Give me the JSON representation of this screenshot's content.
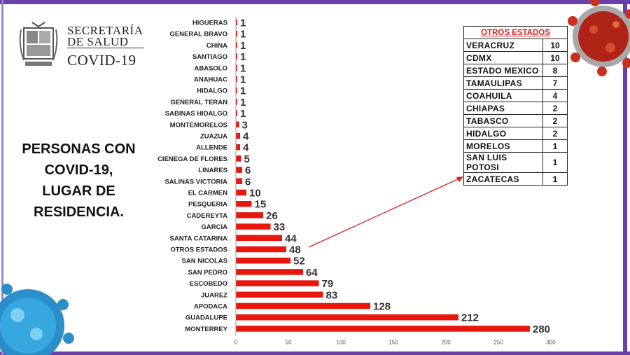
{
  "header": {
    "org_line1": "SECRETARÍA",
    "org_line2": "DE SALUD",
    "program": "COVID-19"
  },
  "heading": {
    "line1": "PERSONAS CON",
    "line2": "COVID-19,",
    "line3": "LUGAR DE",
    "line4": "RESIDENCIA."
  },
  "colors": {
    "bar": "#e8160c",
    "frame": "#6a3fa8",
    "table_title": "#e02020"
  },
  "chart_data": {
    "type": "bar",
    "orientation": "horizontal",
    "categories": [
      "HIGUERAS",
      "GENERAL BRAVO",
      "CHINA",
      "SANTIAGO",
      "ABASOLO",
      "ANAHUAC",
      "HIDALGO",
      "GENERAL TERAN",
      "SABINAS HIDALGO",
      "MONTEMORELOS",
      "ZUAZUA",
      "ALLENDE",
      "CIENEGA DE FLORES",
      "LINARES",
      "SALINAS VICTORIA",
      "EL CARMEN",
      "PESQUERIA",
      "CADEREYTA",
      "GARCIA",
      "SANTA CATARINA",
      "OTROS ESTADOS",
      "SAN NICOLAS",
      "SAN PEDRO",
      "ESCOBEDO",
      "JUAREZ",
      "APODACA",
      "GUADALUPE",
      "MONTERREY"
    ],
    "values": [
      1,
      1,
      1,
      1,
      1,
      1,
      1,
      1,
      1,
      3,
      4,
      4,
      5,
      6,
      6,
      10,
      15,
      26,
      33,
      44,
      48,
      52,
      64,
      79,
      83,
      128,
      212,
      280
    ],
    "xlim": [
      0,
      300
    ],
    "xticks": [
      0,
      50,
      100,
      150,
      200,
      250,
      300
    ],
    "grid": false,
    "legend": "none"
  },
  "others_table": {
    "title": "OTROS ESTADOS",
    "rows": [
      {
        "name": "VERACRUZ",
        "value": "10"
      },
      {
        "name": "CDMX",
        "value": "10"
      },
      {
        "name": "ESTADO MEXICO",
        "value": "8"
      },
      {
        "name": "TAMAULIPAS",
        "value": "7"
      },
      {
        "name": "COAHUILA",
        "value": "4"
      },
      {
        "name": "CHIAPAS",
        "value": "2"
      },
      {
        "name": "TABASCO",
        "value": "2"
      },
      {
        "name": "HIDALGO",
        "value": "2"
      },
      {
        "name": "MORELOS",
        "value": "1"
      },
      {
        "name": "SAN LUIS POTOSI",
        "value": "1"
      },
      {
        "name": "ZACATECAS",
        "value": "1"
      }
    ]
  },
  "icons": [
    "coat-of-arms-icon",
    "virus-icon"
  ]
}
